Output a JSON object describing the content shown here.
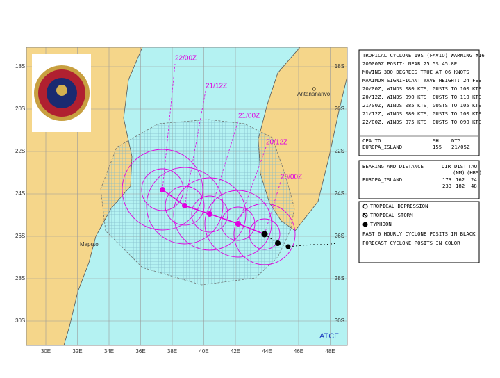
{
  "map": {
    "lat_labels": [
      "18S",
      "20S",
      "22S",
      "24S",
      "26S",
      "28S",
      "30S"
    ],
    "lon_labels": [
      "30E",
      "32E",
      "34E",
      "36E",
      "38E",
      "40E",
      "42E",
      "44E",
      "46E",
      "48E"
    ],
    "forecast_labels": [
      "22/00Z",
      "21/12Z",
      "21/00Z",
      "20/12Z",
      "20/00Z"
    ],
    "places": [
      "Antananarivo",
      "Maputo"
    ],
    "credit": "ATCF"
  },
  "warning": {
    "lines": [
      "TROPICAL CYCLONE 19S (FAVIO) WARNING #16",
      "200000Z POSIT: NEAR 25.5S 45.8E",
      "MOVING 300 DEGREES TRUE AT 06 KNOTS",
      "MAXIMUM SIGNIFICANT WAVE HEIGHT: 24 FEET",
      "20/00Z, WINDS 080 KTS, GUSTS TO 100 KTS",
      "20/12Z, WINDS 090 KTS, GUSTS TO 110 KTS",
      "21/00Z, WINDS 085 KTS, GUSTS TO 105 KTS",
      "21/12Z, WINDS 080 KTS, GUSTS TO 100 KTS",
      "22/00Z, WINDS 075 KTS, GUSTS TO 090 KTS"
    ],
    "cpa": {
      "header": [
        "CPA TO",
        "SH",
        "DTG"
      ],
      "row": [
        "EUROPA_ISLAND",
        "155",
        "21/05Z"
      ]
    }
  },
  "bearing": {
    "title": "BEARING AND DISTANCE",
    "header": [
      "DIR",
      "DIST",
      "TAU"
    ],
    "units": [
      "(NM)",
      "(HRS)"
    ],
    "rows": [
      {
        "name": "EUROPA_ISLAND",
        "values": [
          "173",
          "162",
          "24"
        ]
      },
      {
        "values": [
          "233",
          "182",
          "48"
        ]
      }
    ]
  },
  "legend": {
    "items": [
      "TROPICAL DEPRESSION",
      "TROPICAL STORM",
      "TYPHOON",
      "PAST 6 HOURLY CYCLONE POSITS IN BLACK",
      "FORECAST CYCLONE POSITS IN COLOR"
    ]
  }
}
